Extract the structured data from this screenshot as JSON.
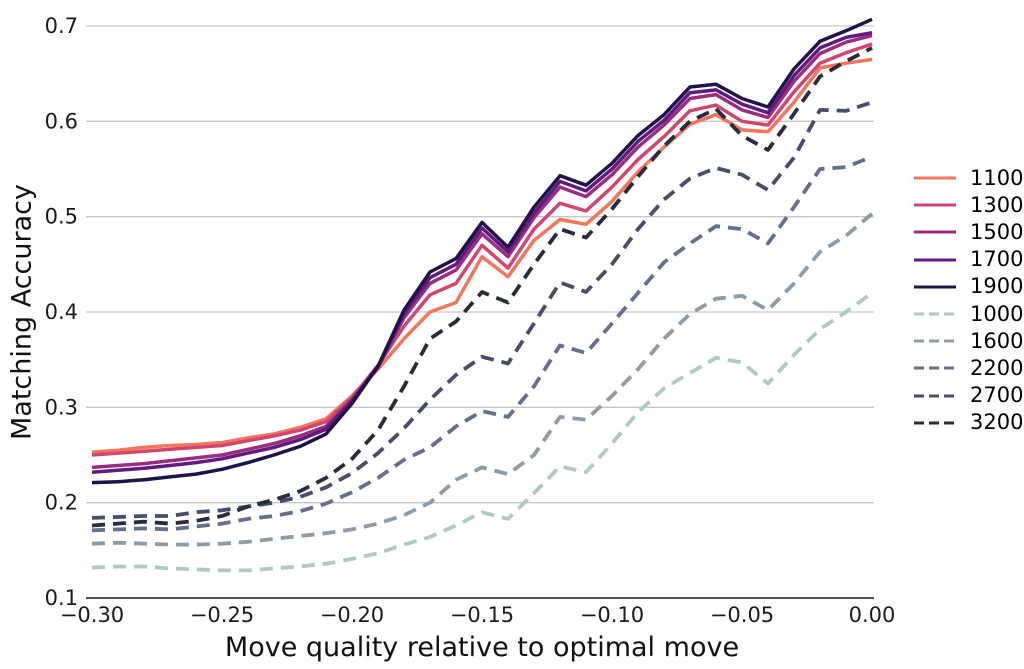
{
  "figure": {
    "xlabel": "Move quality relative to optimal move",
    "ylabel": "Matching Accuracy"
  },
  "chart_data": {
    "type": "line",
    "title": "",
    "xlabel": "Move quality relative to optimal move",
    "ylabel": "Matching Accuracy",
    "xlim": [
      -0.3,
      0.0
    ],
    "ylim": [
      0.1,
      0.7
    ],
    "grid": true,
    "legend_position": "right-outside",
    "x_tick_labels": [
      "−0.30",
      "−0.25",
      "−0.20",
      "−0.15",
      "−0.10",
      "−0.05",
      "0.00"
    ],
    "x_tick_values": [
      -0.3,
      -0.25,
      -0.2,
      -0.15,
      -0.1,
      -0.05,
      0.0
    ],
    "y_tick_labels": [
      "0.1",
      "0.2",
      "0.3",
      "0.4",
      "0.5",
      "0.6",
      "0.7"
    ],
    "y_tick_values": [
      0.1,
      0.2,
      0.3,
      0.4,
      0.5,
      0.6,
      0.7
    ],
    "axis_color": "#3a3a3a",
    "gridline_color": "#c6c6c6",
    "x": [
      -0.3,
      -0.29,
      -0.28,
      -0.27,
      -0.26,
      -0.25,
      -0.24,
      -0.23,
      -0.22,
      -0.21,
      -0.2,
      -0.19,
      -0.18,
      -0.17,
      -0.16,
      -0.15,
      -0.14,
      -0.13,
      -0.12,
      -0.11,
      -0.1,
      -0.09,
      -0.08,
      -0.07,
      -0.06,
      -0.05,
      -0.04,
      -0.03,
      -0.02,
      -0.01,
      0.0
    ],
    "series": [
      {
        "name": "1100",
        "style": "solid",
        "color": "#F3755C",
        "values": [
          0.253,
          0.255,
          0.258,
          0.26,
          0.261,
          0.263,
          0.268,
          0.272,
          0.279,
          0.288,
          0.312,
          0.34,
          0.372,
          0.4,
          0.41,
          0.458,
          0.437,
          0.475,
          0.497,
          0.492,
          0.516,
          0.547,
          0.573,
          0.597,
          0.607,
          0.591,
          0.589,
          0.62,
          0.656,
          0.661,
          0.665
        ]
      },
      {
        "name": "1300",
        "style": "solid",
        "color": "#D2456F",
        "values": [
          0.25,
          0.252,
          0.254,
          0.256,
          0.258,
          0.26,
          0.265,
          0.27,
          0.276,
          0.285,
          0.31,
          0.344,
          0.385,
          0.418,
          0.43,
          0.47,
          0.446,
          0.487,
          0.514,
          0.506,
          0.531,
          0.56,
          0.584,
          0.611,
          0.617,
          0.6,
          0.596,
          0.631,
          0.661,
          0.672,
          0.681
        ]
      },
      {
        "name": "1500",
        "style": "solid",
        "color": "#9A2D80",
        "values": [
          0.237,
          0.239,
          0.241,
          0.244,
          0.247,
          0.25,
          0.256,
          0.262,
          0.27,
          0.28,
          0.308,
          0.342,
          0.394,
          0.43,
          0.444,
          0.482,
          0.458,
          0.499,
          0.531,
          0.521,
          0.544,
          0.573,
          0.596,
          0.624,
          0.628,
          0.612,
          0.604,
          0.642,
          0.671,
          0.683,
          0.69
        ]
      },
      {
        "name": "1700",
        "style": "solid",
        "color": "#611A80",
        "values": [
          0.232,
          0.234,
          0.236,
          0.239,
          0.242,
          0.246,
          0.252,
          0.258,
          0.266,
          0.277,
          0.307,
          0.343,
          0.398,
          0.436,
          0.45,
          0.488,
          0.463,
          0.504,
          0.537,
          0.527,
          0.55,
          0.579,
          0.601,
          0.63,
          0.633,
          0.618,
          0.609,
          0.648,
          0.677,
          0.688,
          0.693
        ]
      },
      {
        "name": "1900",
        "style": "solid",
        "color": "#1F1347",
        "values": [
          0.221,
          0.222,
          0.224,
          0.227,
          0.23,
          0.235,
          0.242,
          0.25,
          0.259,
          0.272,
          0.304,
          0.343,
          0.402,
          0.442,
          0.456,
          0.494,
          0.468,
          0.51,
          0.543,
          0.533,
          0.556,
          0.585,
          0.607,
          0.636,
          0.639,
          0.624,
          0.615,
          0.655,
          0.684,
          0.695,
          0.707
        ]
      },
      {
        "name": "1000",
        "style": "dashed",
        "color": "#AECAC5",
        "values": [
          0.132,
          0.133,
          0.133,
          0.131,
          0.13,
          0.129,
          0.129,
          0.131,
          0.133,
          0.136,
          0.141,
          0.147,
          0.156,
          0.164,
          0.176,
          0.19,
          0.183,
          0.21,
          0.238,
          0.232,
          0.262,
          0.295,
          0.32,
          0.336,
          0.352,
          0.347,
          0.325,
          0.355,
          0.382,
          0.4,
          0.42
        ]
      },
      {
        "name": "1600",
        "style": "dashed",
        "color": "#8C9DA9",
        "values": [
          0.157,
          0.158,
          0.157,
          0.156,
          0.156,
          0.157,
          0.159,
          0.162,
          0.165,
          0.168,
          0.172,
          0.178,
          0.187,
          0.2,
          0.224,
          0.237,
          0.23,
          0.25,
          0.29,
          0.287,
          0.312,
          0.34,
          0.372,
          0.398,
          0.414,
          0.417,
          0.402,
          0.43,
          0.463,
          0.48,
          0.503
        ]
      },
      {
        "name": "2200",
        "style": "dashed",
        "color": "#63708D",
        "values": [
          0.171,
          0.172,
          0.173,
          0.172,
          0.175,
          0.178,
          0.183,
          0.186,
          0.191,
          0.199,
          0.211,
          0.226,
          0.245,
          0.258,
          0.28,
          0.296,
          0.29,
          0.322,
          0.365,
          0.357,
          0.388,
          0.42,
          0.452,
          0.472,
          0.49,
          0.487,
          0.472,
          0.51,
          0.55,
          0.552,
          0.563
        ]
      },
      {
        "name": "2700",
        "style": "dashed",
        "color": "#454F69",
        "values": [
          0.184,
          0.185,
          0.186,
          0.186,
          0.19,
          0.192,
          0.196,
          0.2,
          0.206,
          0.216,
          0.231,
          0.252,
          0.278,
          0.308,
          0.334,
          0.353,
          0.346,
          0.388,
          0.431,
          0.421,
          0.45,
          0.487,
          0.518,
          0.54,
          0.551,
          0.544,
          0.528,
          0.562,
          0.612,
          0.611,
          0.62
        ]
      },
      {
        "name": "3200",
        "style": "dashed",
        "color": "#282C3E",
        "values": [
          0.176,
          0.178,
          0.18,
          0.178,
          0.181,
          0.186,
          0.196,
          0.203,
          0.212,
          0.226,
          0.246,
          0.276,
          0.322,
          0.372,
          0.39,
          0.421,
          0.41,
          0.45,
          0.487,
          0.478,
          0.508,
          0.542,
          0.574,
          0.6,
          0.613,
          0.585,
          0.57,
          0.608,
          0.647,
          0.663,
          0.677
        ]
      }
    ],
    "legend_entries": [
      "1100",
      "1300",
      "1500",
      "1700",
      "1900",
      "1000",
      "1600",
      "2200",
      "2700",
      "3200"
    ]
  }
}
